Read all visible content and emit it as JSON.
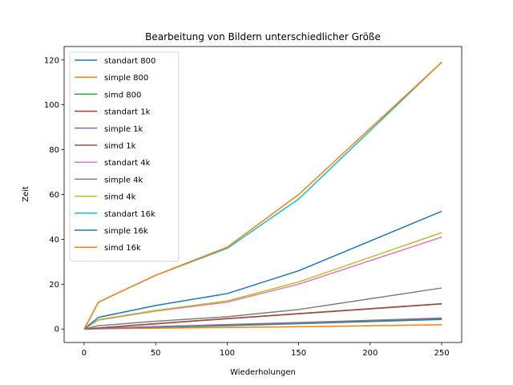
{
  "chart_data": {
    "type": "line",
    "title": "Bearbeitung von Bildern unterschiedlicher Größe",
    "xlabel": "Wiederholungen",
    "ylabel": "Zeit",
    "xlim": [
      -14,
      264
    ],
    "ylim": [
      -6,
      126
    ],
    "xticks": [
      0,
      50,
      100,
      150,
      200,
      250
    ],
    "yticks": [
      0,
      20,
      40,
      60,
      80,
      100,
      120
    ],
    "x": [
      0,
      10,
      50,
      100,
      150,
      250
    ],
    "grid": false,
    "legend_position": "top-left",
    "series": [
      {
        "name": "standart 800",
        "color": "#1f77b4",
        "values": [
          0.0,
          0.3,
          0.8,
          1.5,
          2.4,
          4.3
        ]
      },
      {
        "name": "simple 800",
        "color": "#ff7f0e",
        "values": [
          0.0,
          0.1,
          0.4,
          0.7,
          1.0,
          1.9
        ]
      },
      {
        "name": "simd 800",
        "color": "#2ca02c",
        "values": [
          0.0,
          0.3,
          0.9,
          1.7,
          2.6,
          4.6
        ]
      },
      {
        "name": "standart 1k",
        "color": "#d62728",
        "values": [
          0.0,
          0.4,
          2.3,
          4.6,
          6.8,
          11.2
        ]
      },
      {
        "name": "simple 1k",
        "color": "#9467bd",
        "values": [
          0.0,
          0.2,
          1.1,
          2.0,
          2.9,
          4.9
        ]
      },
      {
        "name": "simd 1k",
        "color": "#8c564b",
        "values": [
          0.0,
          0.5,
          2.4,
          4.7,
          6.9,
          11.3
        ]
      },
      {
        "name": "standart 4k",
        "color": "#e377c2",
        "values": [
          0.0,
          4.0,
          8.0,
          12.0,
          20.0,
          41.0
        ]
      },
      {
        "name": "simple 4k",
        "color": "#7f7f7f",
        "values": [
          0.0,
          1.5,
          3.5,
          5.5,
          8.7,
          18.3
        ]
      },
      {
        "name": "simd 4k",
        "color": "#bcbd22",
        "values": [
          0.0,
          4.2,
          8.3,
          12.5,
          21.0,
          43.0
        ]
      },
      {
        "name": "standart 16k",
        "color": "#17becf",
        "values": [
          0.0,
          12.0,
          24.0,
          36.0,
          58.0,
          119.0
        ]
      },
      {
        "name": "simple 16k",
        "color": "#1f77b4",
        "values": [
          0.0,
          5.2,
          10.5,
          15.8,
          26.0,
          52.5
        ]
      },
      {
        "name": "simd 16k",
        "color": "#ff7f0e",
        "values": [
          0.0,
          12.0,
          24.0,
          36.5,
          60.0,
          119.0
        ]
      }
    ]
  }
}
